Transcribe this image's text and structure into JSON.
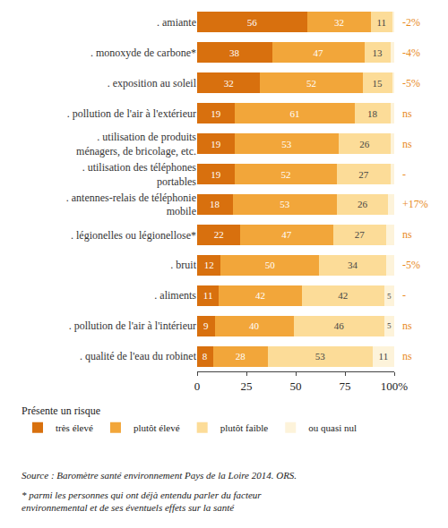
{
  "chart_data": {
    "type": "bar",
    "orientation": "horizontal",
    "stacked": true,
    "data_labels": true,
    "grid": false,
    "legend": "bottom left",
    "legend_title": "Présente un risque",
    "categories": [
      ". amiante",
      ". monoxyde de carbone*",
      ". exposition au soleil",
      ". pollution de l'air à l'extérieur",
      ". utilisation de produits ménagers, de bricolage, etc.",
      ". utilisation des téléphones portables",
      ". antennes-relais de téléphonie mobile",
      ". légionelles ou légionellose*",
      ". bruit",
      ". aliments",
      ". pollution de l'air à l'intérieur",
      ". qualité de l'eau du robinet"
    ],
    "series": [
      {
        "name": "très élevé",
        "color": "#d8700e",
        "values": [
          56,
          38,
          32,
          19,
          19,
          19,
          18,
          22,
          12,
          11,
          9,
          8
        ]
      },
      {
        "name": "plutôt élevé",
        "color": "#f2a63a",
        "values": [
          32,
          47,
          52,
          61,
          53,
          52,
          53,
          47,
          50,
          42,
          40,
          28
        ]
      },
      {
        "name": "plutôt faible",
        "color": "#fcdc98",
        "values": [
          11,
          13,
          15,
          18,
          26,
          27,
          26,
          27,
          34,
          42,
          46,
          53
        ]
      },
      {
        "name": "ou quasi nul",
        "color": "#fdf3da",
        "values": [
          1,
          2,
          1,
          2,
          2,
          2,
          3,
          4,
          4,
          5,
          5,
          11
        ],
        "value_labels": [
          null,
          null,
          null,
          null,
          null,
          null,
          null,
          null,
          null,
          "5",
          "5",
          "11"
        ]
      }
    ],
    "xlim": [
      0,
      100
    ],
    "xticks": [
      0,
      25,
      50,
      75,
      {
        "value": 100,
        "label": "100%"
      }
    ],
    "annotations": [
      "-2%",
      "-4%",
      "-5%",
      "ns",
      "ns",
      "-",
      "+17%",
      "ns",
      "-5%",
      "-",
      "ns",
      "ns"
    ],
    "notes": [
      "Source : Baromètre santé environnement Pays de la Loire 2014. ORS.",
      "* parmi les personnes qui ont déjà entendu parler du facteur environnemental et de ses éventuels effets sur la santé"
    ]
  }
}
